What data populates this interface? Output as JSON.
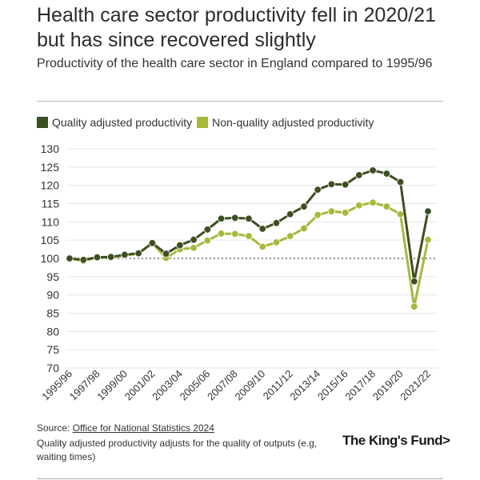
{
  "title": "Health care sector productivity fell in 2020/21 but has since recovered slightly",
  "subtitle": "Productivity of the health care sector in England compared to 1995/96",
  "legend": {
    "quality": "Quality adjusted productivity",
    "non_quality": "Non-quality adjusted productivity"
  },
  "colors": {
    "quality": "#3d4f22",
    "non_quality": "#a8b83c",
    "baseline": "#999999",
    "grid": "#e6e6e6"
  },
  "source": {
    "prefix": "Source: ",
    "link_text": "Office for National Statistics 2024"
  },
  "note": "Quality adjusted productivity adjusts for the quality of outputs (e.g, waiting times)",
  "logo": "The King's Fund>",
  "chart_data": {
    "type": "line",
    "x": [
      "1995/96",
      "1996/97",
      "1997/98",
      "1998/99",
      "1999/00",
      "2000/01",
      "2001/02",
      "2002/03",
      "2003/04",
      "2004/05",
      "2005/06",
      "2006/07",
      "2007/08",
      "2008/09",
      "2009/10",
      "2010/11",
      "2011/12",
      "2012/13",
      "2013/14",
      "2014/15",
      "2015/16",
      "2016/17",
      "2017/18",
      "2018/19",
      "2019/20",
      "2020/21",
      "2021/22"
    ],
    "x_tick_labels": [
      "1995/96",
      "1997/98",
      "1999/00",
      "2001/02",
      "2003/04",
      "2005/06",
      "2007/08",
      "2009/10",
      "2011/12",
      "2013/14",
      "2015/16",
      "2017/18",
      "2019/20",
      "2021/22"
    ],
    "series": [
      {
        "name": "Quality adjusted productivity",
        "values": [
          100,
          99.6,
          100.3,
          100.4,
          101,
          101.4,
          104.2,
          101.3,
          103.6,
          105.1,
          107.9,
          110.9,
          111.1,
          110.9,
          108.1,
          109.7,
          112.1,
          114.2,
          118.8,
          120.3,
          120.2,
          122.8,
          124.1,
          123.2,
          120.9,
          93.7,
          112.9
        ]
      },
      {
        "name": "Non-quality adjusted productivity",
        "values": [
          100,
          99.3,
          100.3,
          100.2,
          100.8,
          101.3,
          104.2,
          100.1,
          102.5,
          102.9,
          104.9,
          106.8,
          106.7,
          106.1,
          103.2,
          104.4,
          106.1,
          108.2,
          111.9,
          112.9,
          112.5,
          114.5,
          115.3,
          114.2,
          112.1,
          86.8,
          105.1
        ]
      }
    ],
    "yticks": [
      70,
      75,
      80,
      85,
      90,
      95,
      100,
      105,
      110,
      115,
      120,
      125,
      130
    ],
    "ylim": [
      70,
      130
    ],
    "baseline": 100,
    "xlabel": "",
    "ylabel": "",
    "grid": true,
    "legend_position": "top-left"
  }
}
